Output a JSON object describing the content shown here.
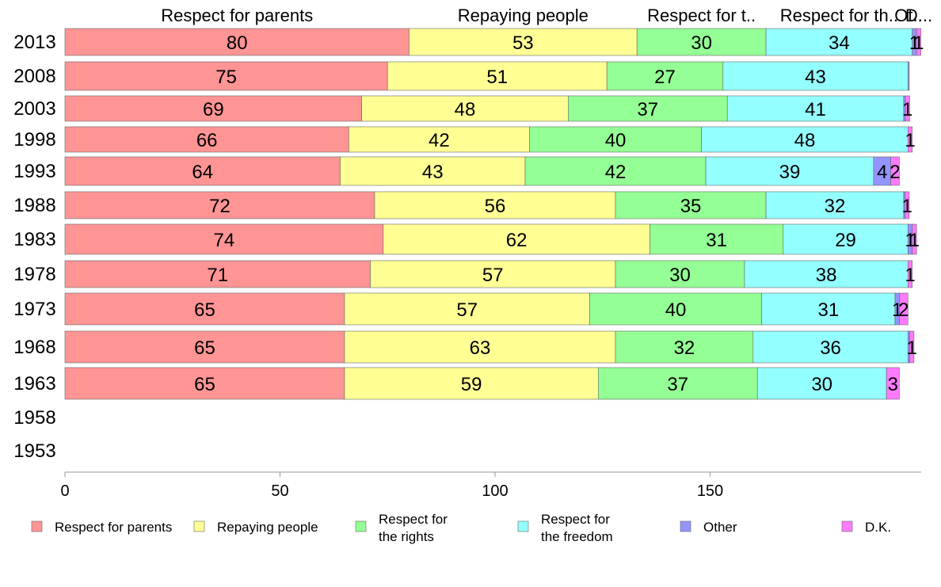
{
  "colors": {
    "Respect for parents": "#ff9494",
    "Repaying people": "#ffff94",
    "Respect for the rights": "#94ff94",
    "Respect for the freedom": "#94ffff",
    "Other": "#9494ff",
    "D.K.": "#ff7aff"
  },
  "chart_data": {
    "type": "bar",
    "orientation": "horizontal",
    "stacked": true,
    "categories": [
      "2013",
      "2008",
      "2003",
      "1998",
      "1993",
      "1988",
      "1983",
      "1978",
      "1973",
      "1968",
      "1963",
      "1958",
      "1953"
    ],
    "series": [
      {
        "name": "Respect for parents",
        "values": [
          80,
          75,
          69,
          66,
          64,
          72,
          74,
          71,
          65,
          65,
          65,
          null,
          null
        ]
      },
      {
        "name": "Repaying people",
        "values": [
          53,
          51,
          48,
          42,
          43,
          56,
          62,
          57,
          57,
          63,
          59,
          null,
          null
        ]
      },
      {
        "name": "Respect for the rights",
        "values": [
          30,
          27,
          37,
          40,
          42,
          35,
          31,
          30,
          40,
          32,
          37,
          null,
          null
        ]
      },
      {
        "name": "Respect for the freedom",
        "values": [
          34,
          43,
          41,
          48,
          39,
          32,
          29,
          38,
          31,
          36,
          30,
          null,
          null
        ]
      },
      {
        "name": "Other",
        "values": [
          1,
          0.3,
          0.4,
          0,
          4,
          0.3,
          1,
          0,
          1,
          0.4,
          0,
          null,
          null
        ]
      },
      {
        "name": "D.K.",
        "values": [
          1,
          0,
          1,
          1,
          2,
          1,
          1,
          1,
          2,
          1,
          3,
          null,
          null
        ]
      }
    ],
    "top_labels": [
      "Respect for parents",
      "Repaying people",
      "Respect for t..",
      "Respect for th..",
      "Ot..",
      "D..."
    ],
    "xticks": [
      "0",
      "50",
      "100",
      "150"
    ],
    "xlim": [
      0,
      200
    ],
    "legend": {
      "position": "bottom",
      "entries": [
        {
          "series": "Respect for parents",
          "lines": [
            "Respect for parents"
          ]
        },
        {
          "series": "Repaying people",
          "lines": [
            "Repaying people"
          ]
        },
        {
          "series": "Respect for the rights",
          "lines": [
            "Respect for",
            "the rights"
          ]
        },
        {
          "series": "Respect for the freedom",
          "lines": [
            "Respect for",
            "the freedom"
          ]
        },
        {
          "series": "Other",
          "lines": [
            "Other"
          ]
        },
        {
          "series": "D.K.",
          "lines": [
            "D.K."
          ]
        }
      ]
    }
  }
}
